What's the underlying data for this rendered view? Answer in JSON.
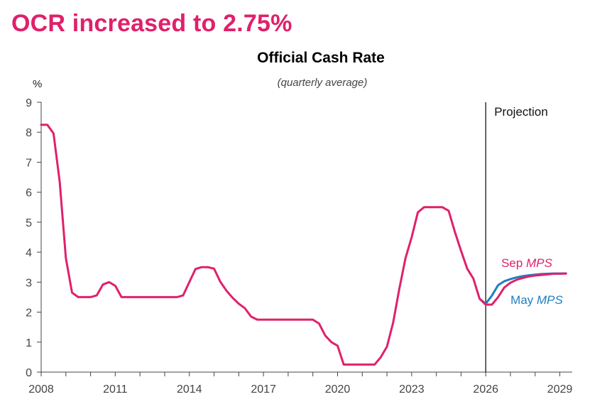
{
  "headline": "OCR increased to 2.75%",
  "chart_data": {
    "type": "line",
    "title": "Official Cash Rate",
    "subtitle": "(quarterly average)",
    "ylabel": "%",
    "xlabel": "",
    "ylim": [
      0,
      9
    ],
    "xlim": [
      2008.0,
      2029.5
    ],
    "yticks": [
      "0",
      "1",
      "2",
      "3",
      "4",
      "5",
      "6",
      "7",
      "8",
      "9"
    ],
    "xticks": [
      "2008",
      "2011",
      "2014",
      "2017",
      "2020",
      "2023",
      "2026",
      "2029"
    ],
    "grid": false,
    "projection_start": 2026.0,
    "projection_label": "Projection",
    "colors": {
      "sep": "#e0206a",
      "may": "#1f7fbf",
      "divider": "#000000",
      "axis": "#444444"
    },
    "series": [
      {
        "name": "Sep MPS",
        "label_prefix": "Sep ",
        "label_italic": "MPS",
        "x": [
          2008.0,
          2008.25,
          2008.5,
          2008.75,
          2009.0,
          2009.25,
          2009.5,
          2009.75,
          2010.0,
          2010.25,
          2010.5,
          2010.75,
          2011.0,
          2011.25,
          2011.5,
          2011.75,
          2012.0,
          2012.25,
          2012.5,
          2012.75,
          2013.0,
          2013.25,
          2013.5,
          2013.75,
          2014.0,
          2014.25,
          2014.5,
          2014.75,
          2015.0,
          2015.25,
          2015.5,
          2015.75,
          2016.0,
          2016.25,
          2016.5,
          2016.75,
          2017.0,
          2017.25,
          2017.5,
          2017.75,
          2018.0,
          2018.25,
          2018.5,
          2018.75,
          2019.0,
          2019.25,
          2019.5,
          2019.75,
          2020.0,
          2020.25,
          2020.5,
          2020.75,
          2021.0,
          2021.25,
          2021.5,
          2021.75,
          2022.0,
          2022.25,
          2022.5,
          2022.75,
          2023.0,
          2023.25,
          2023.5,
          2023.75,
          2024.0,
          2024.25,
          2024.5,
          2024.75,
          2025.0,
          2025.25,
          2025.5,
          2025.75,
          2026.0,
          2026.25,
          2026.5,
          2026.75,
          2027.0,
          2027.25,
          2027.5,
          2027.75,
          2028.0,
          2028.25,
          2028.5,
          2028.75,
          2029.0,
          2029.25
        ],
        "y": [
          8.25,
          8.25,
          7.96,
          6.35,
          3.8,
          2.65,
          2.5,
          2.5,
          2.5,
          2.56,
          2.92,
          3.0,
          2.88,
          2.5,
          2.5,
          2.5,
          2.5,
          2.5,
          2.5,
          2.5,
          2.5,
          2.5,
          2.5,
          2.56,
          3.0,
          3.44,
          3.5,
          3.5,
          3.45,
          3.02,
          2.72,
          2.48,
          2.28,
          2.13,
          1.85,
          1.75,
          1.75,
          1.75,
          1.75,
          1.75,
          1.75,
          1.75,
          1.75,
          1.75,
          1.75,
          1.62,
          1.22,
          1.0,
          0.88,
          0.25,
          0.25,
          0.25,
          0.25,
          0.25,
          0.25,
          0.5,
          0.85,
          1.65,
          2.78,
          3.8,
          4.5,
          5.33,
          5.5,
          5.5,
          5.5,
          5.5,
          5.38,
          4.68,
          4.05,
          3.45,
          3.12,
          2.45,
          2.25,
          2.25,
          2.5,
          2.82,
          2.98,
          3.08,
          3.14,
          3.19,
          3.22,
          3.24,
          3.26,
          3.28,
          3.28,
          3.29
        ]
      },
      {
        "name": "May MPS",
        "label_prefix": "May ",
        "label_italic": "MPS",
        "x": [
          2025.75,
          2026.0,
          2026.25,
          2026.5,
          2026.75,
          2027.0,
          2027.25,
          2027.5,
          2027.75,
          2028.0,
          2028.25,
          2028.5,
          2028.75,
          2029.0,
          2029.25
        ],
        "y": [
          2.45,
          2.28,
          2.55,
          2.9,
          3.03,
          3.1,
          3.16,
          3.2,
          3.23,
          3.25,
          3.27,
          3.28,
          3.29,
          3.29,
          3.29
        ]
      }
    ]
  }
}
